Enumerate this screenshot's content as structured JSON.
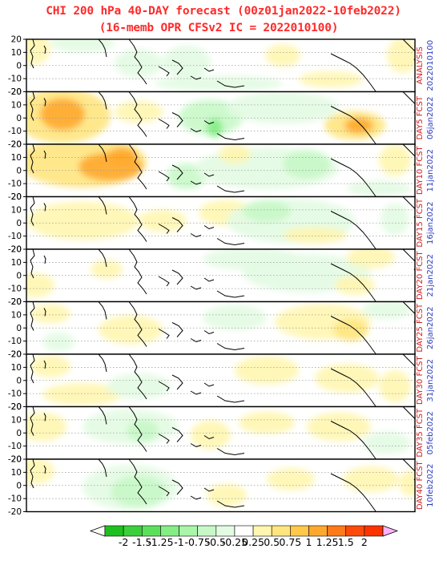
{
  "title": {
    "line1": "CHI 200 hPa 40-DAY forecast (00z01jan2022-10feb2022)",
    "line2": "(16-memb OPR CFSv2 IC = 2022010100)"
  },
  "chart_data": {
    "type": "heatmap",
    "variable": "CHI 200 hPa",
    "y_ticks": [
      20,
      10,
      0,
      -10,
      -20
    ],
    "ylim": [
      -20,
      20
    ],
    "grid": "dotted latitude lines",
    "panels": [
      {
        "label": "ANALYSIS",
        "date": "2022010100"
      },
      {
        "label": "DAY5 FCST",
        "date": "06jan2022"
      },
      {
        "label": "DAY10 FCST",
        "date": "11jan2022"
      },
      {
        "label": "DAY15 FCST",
        "date": "16jan2022"
      },
      {
        "label": "DAY20 FCST",
        "date": "21jan2022"
      },
      {
        "label": "DAY25 FCST",
        "date": "26jan2022"
      },
      {
        "label": "DAY30 FCST",
        "date": "31jan2022"
      },
      {
        "label": "DAY35 FCST",
        "date": "05feb2022"
      },
      {
        "label": "DAY40 FCST",
        "date": "10feb2022"
      }
    ],
    "colorbar": {
      "labels": [
        "-2",
        "-1.5",
        "-1.25",
        "-1",
        "-0.75",
        "-0.5",
        "-0.25",
        "0.25",
        "0.5",
        "0.75",
        "1",
        "1.25",
        "1.5",
        "2"
      ],
      "colors": [
        "#1fbf1f",
        "#3ccf3c",
        "#5ce05c",
        "#84ee84",
        "#a9f5a9",
        "#c8f8c8",
        "#e3fbe3",
        "#ffffff",
        "#fff6b0",
        "#ffe580",
        "#ffc84a",
        "#ffa82e",
        "#ff7a1a",
        "#ff4a0a",
        "#ff3300"
      ],
      "under_color": "#ffffff",
      "over_color": "#ffb3ff"
    }
  }
}
